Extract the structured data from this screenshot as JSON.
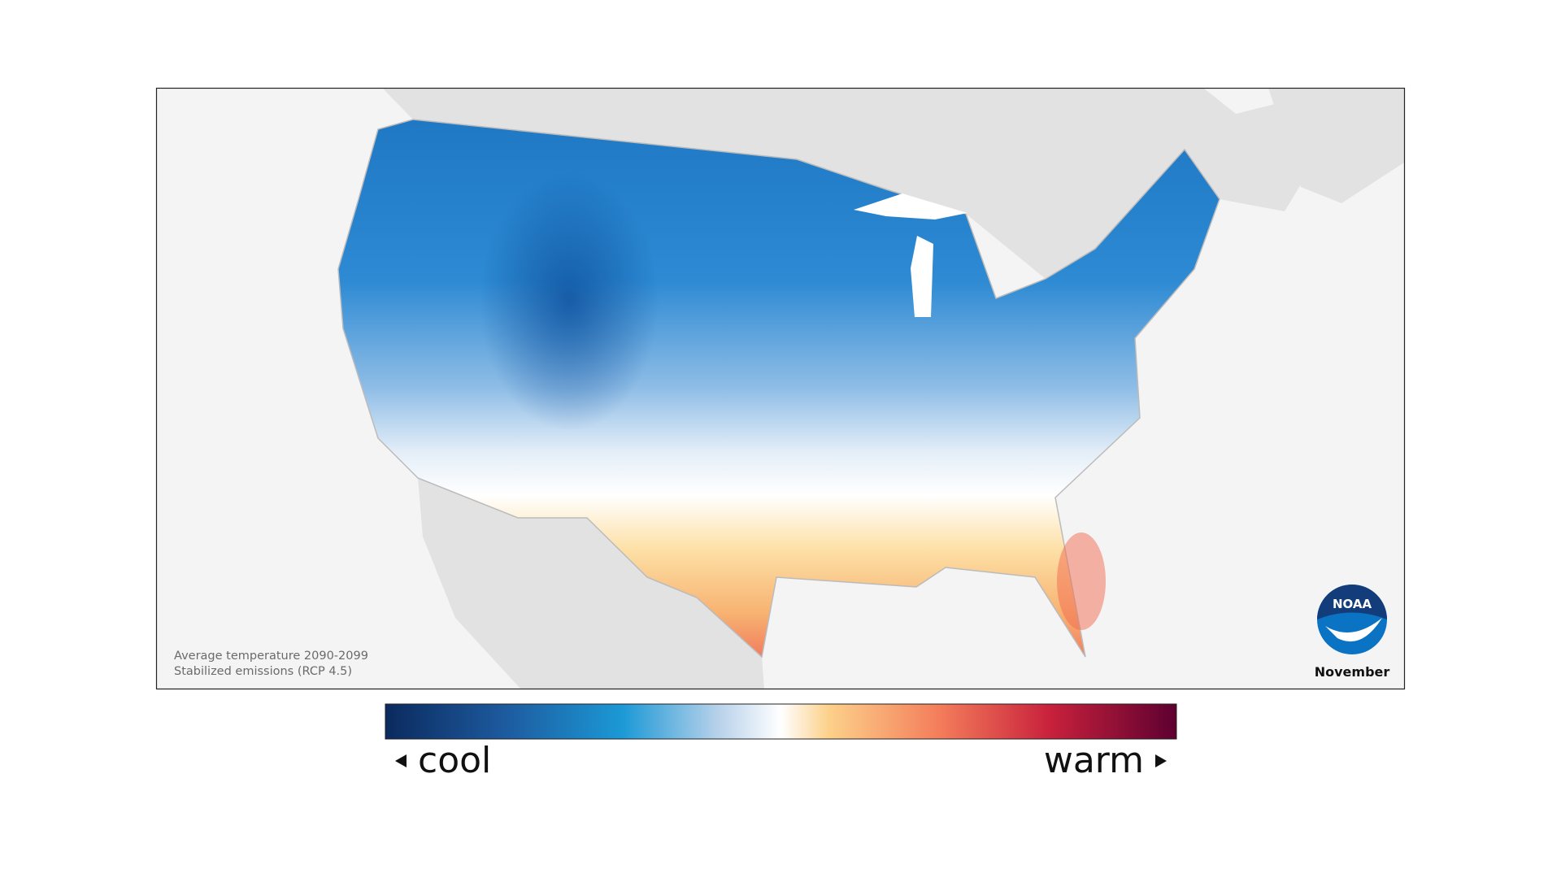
{
  "map": {
    "caption": [
      "Average temperature 2090-2099",
      "Stabilized emissions (RCP 4.5)"
    ],
    "logo": "NOAA",
    "month": "November",
    "legend": {
      "low": "cool",
      "high": "warm"
    }
  }
}
